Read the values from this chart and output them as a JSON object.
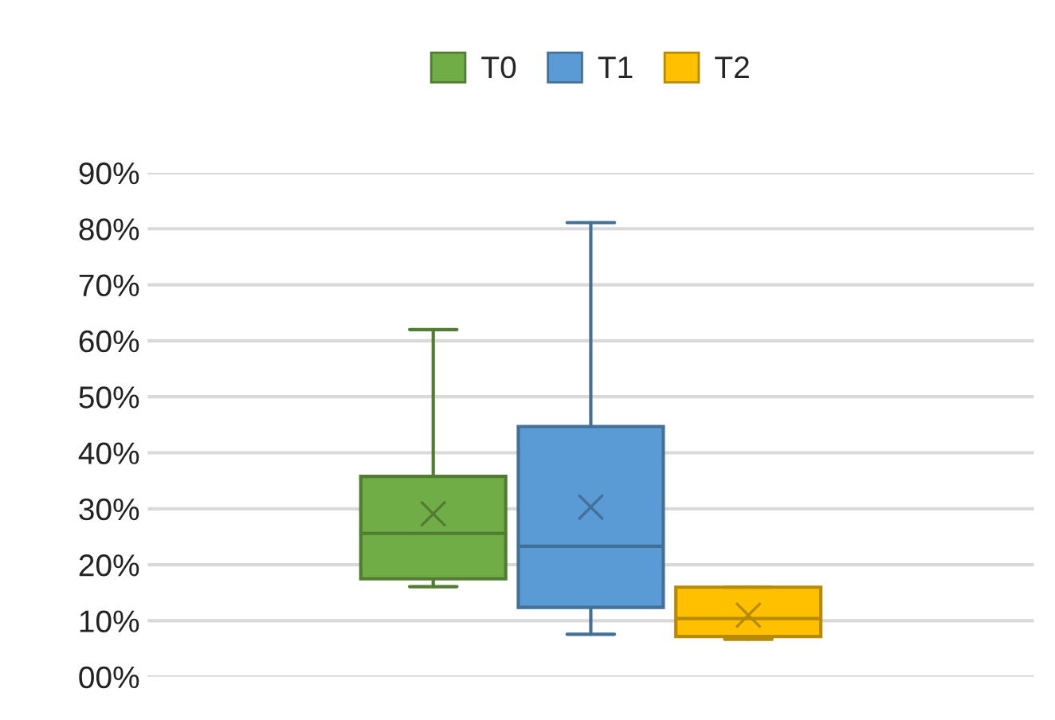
{
  "chart_data": {
    "type": "box",
    "categories": [
      null
    ],
    "series": [
      {
        "name": "T0",
        "color": "#70ad47",
        "boxes": [
          {
            "low": 16.1,
            "q1": 17.5,
            "median": 25.6,
            "q3": 35.8,
            "high": 62.0,
            "mean": 29.1
          }
        ]
      },
      {
        "name": "T1",
        "color": "#5b9bd5",
        "boxes": [
          {
            "low": 7.6,
            "q1": 12.4,
            "median": 23.3,
            "q3": 44.7,
            "high": 81.1,
            "mean": 30.3
          }
        ]
      },
      {
        "name": "T2",
        "color": "#ffc000",
        "boxes": [
          {
            "low": 6.7,
            "q1": 7.2,
            "median": 10.4,
            "q3": 16.0,
            "high": 16.0,
            "mean": 11.0
          }
        ]
      }
    ],
    "ylim": [
      0,
      90
    ],
    "yticks": [
      {
        "value": 0,
        "label": "00%"
      },
      {
        "value": 10,
        "label": "10%"
      },
      {
        "value": 20,
        "label": "20%"
      },
      {
        "value": 30,
        "label": "30%"
      },
      {
        "value": 40,
        "label": "40%"
      },
      {
        "value": 50,
        "label": "50%"
      },
      {
        "value": 60,
        "label": "60%"
      },
      {
        "value": 70,
        "label": "70%"
      },
      {
        "value": 80,
        "label": "80%"
      },
      {
        "value": 90,
        "label": "90%"
      }
    ],
    "grid": "y",
    "legend": "top"
  }
}
